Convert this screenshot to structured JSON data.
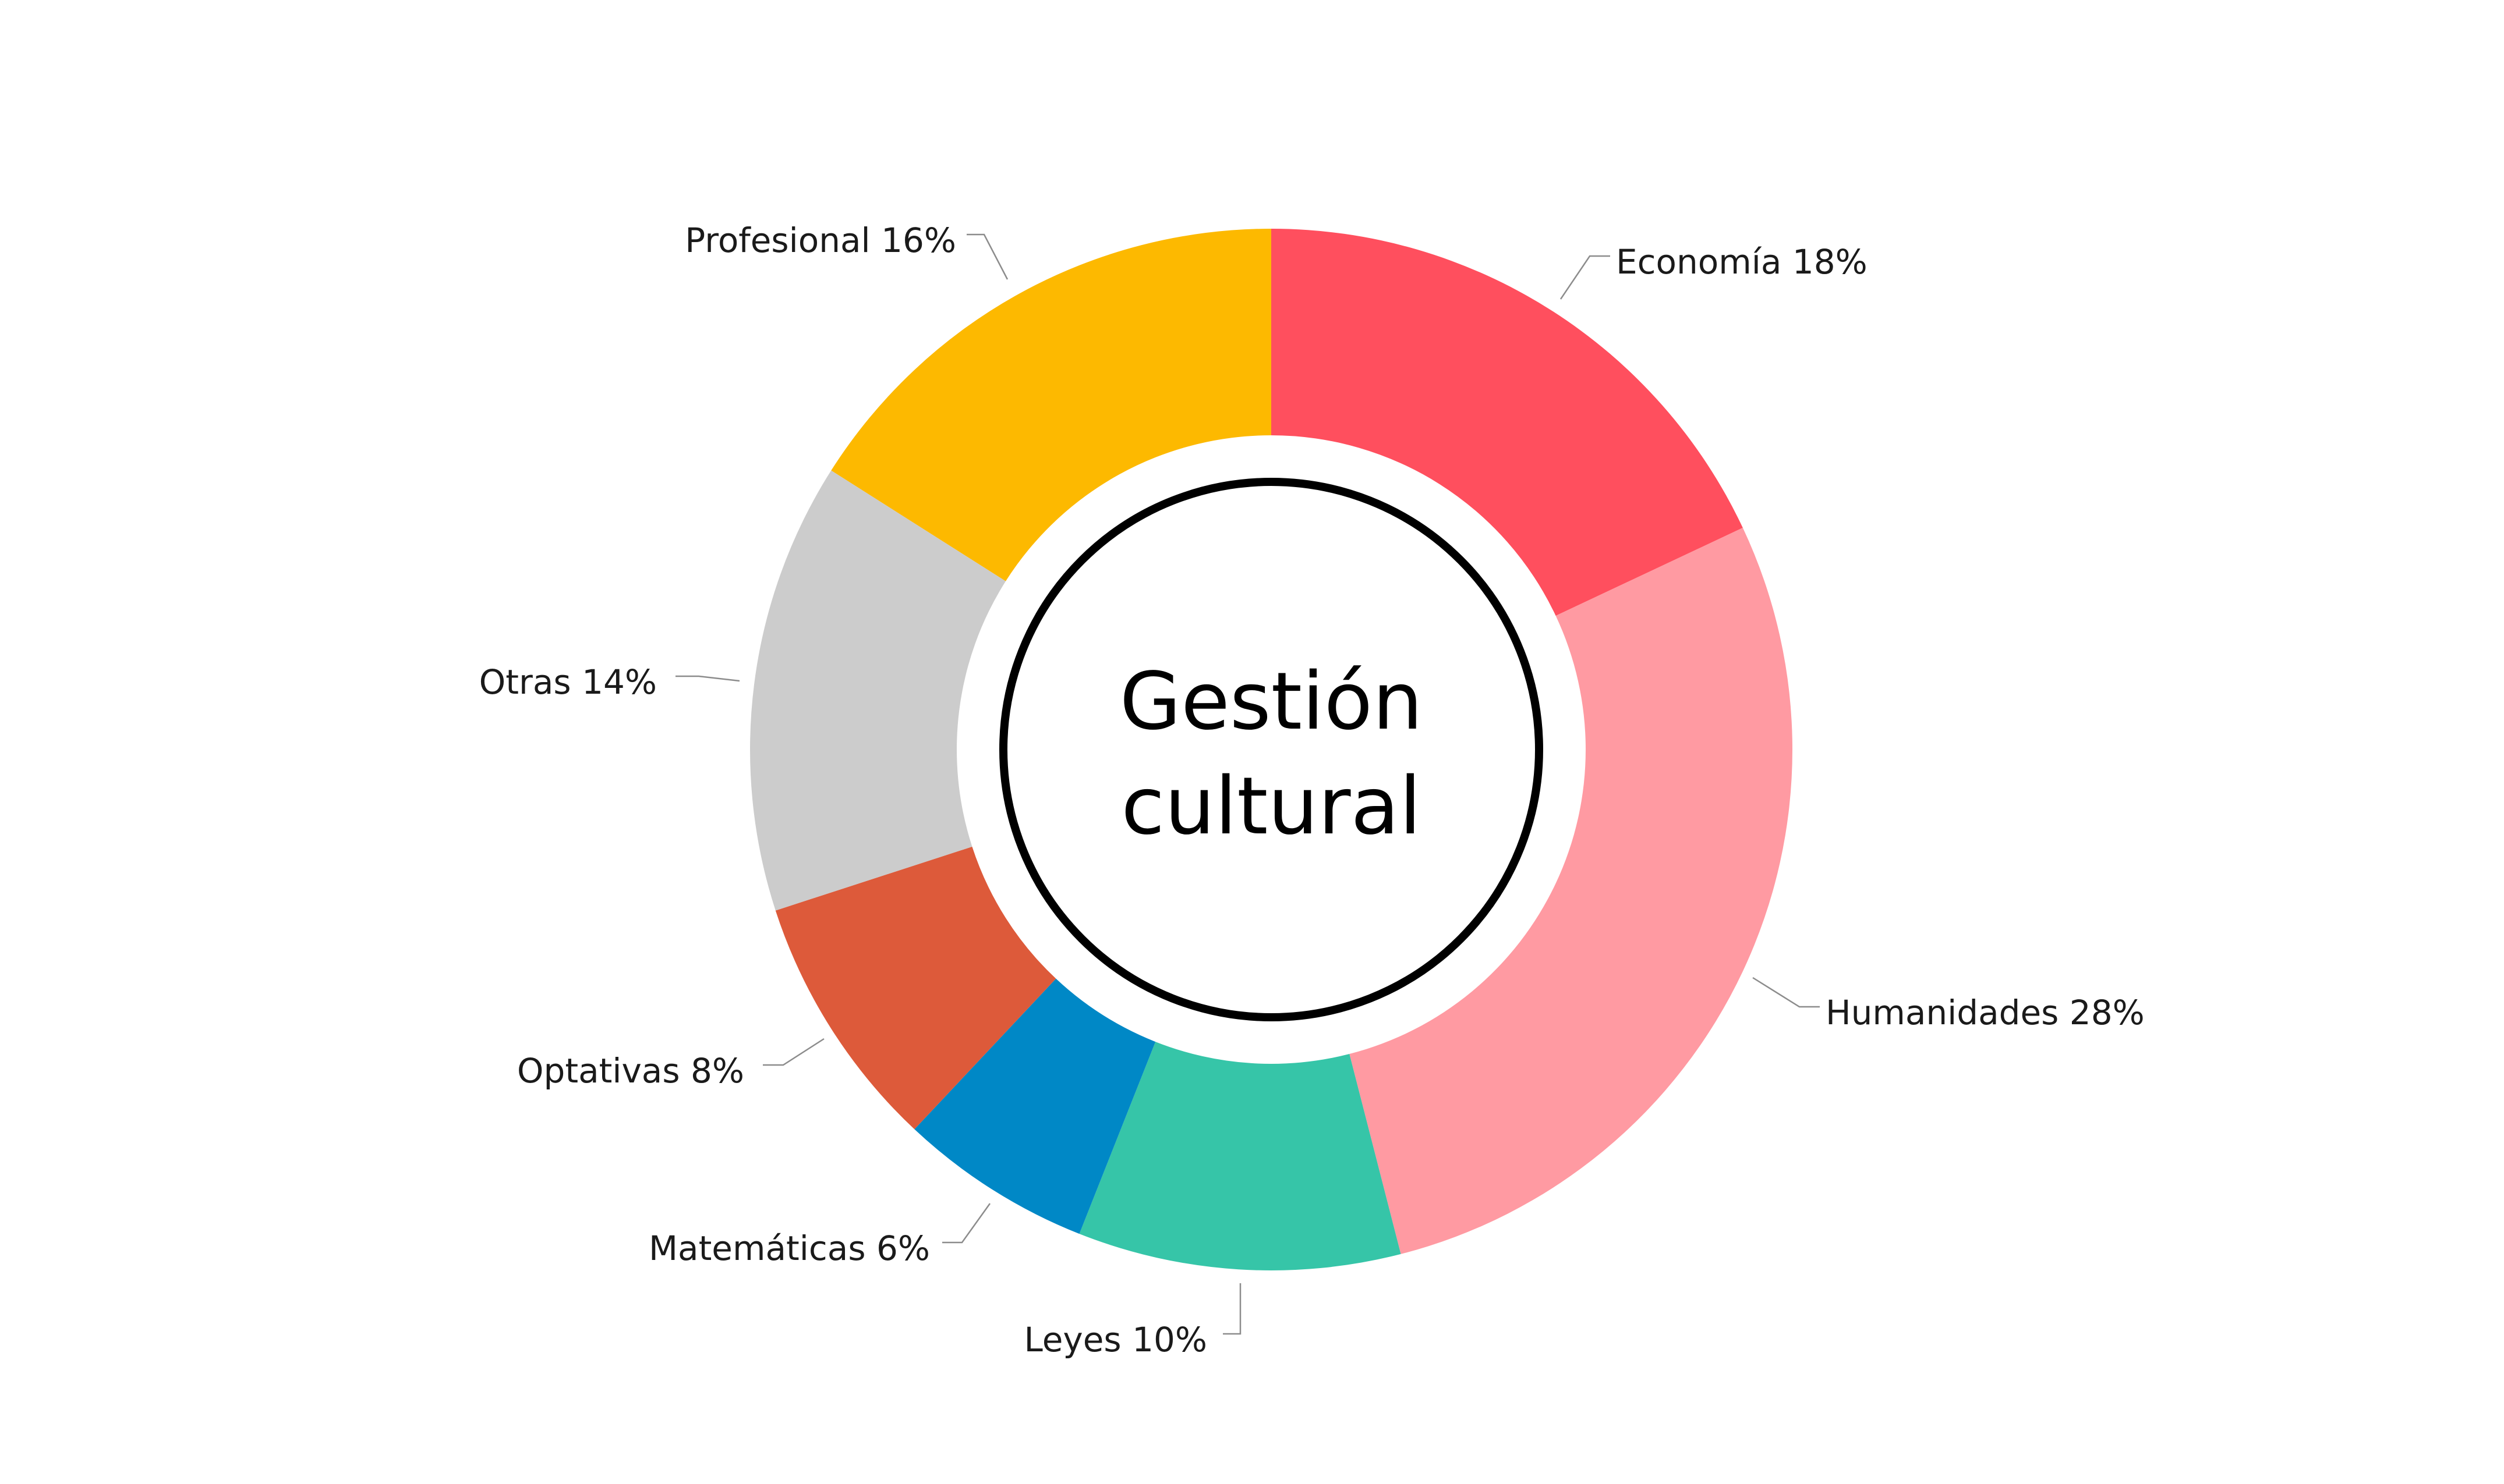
{
  "chart_data": {
    "type": "pie",
    "variant": "donut",
    "center_title_lines": [
      "Gestión",
      "cultural"
    ],
    "unit": "%",
    "start": "top",
    "direction": "clockwise",
    "slices": [
      {
        "label": "Economía",
        "value": 18,
        "color": "#FF4F5E"
      },
      {
        "label": "Humanidades",
        "value": 28,
        "color": "#FF9AA2"
      },
      {
        "label": "Leyes",
        "value": 10,
        "color": "#36C5A8"
      },
      {
        "label": "Matemáticas",
        "value": 6,
        "color": "#0088C6"
      },
      {
        "label": "Optativas",
        "value": 8,
        "color": "#DD5A3A"
      },
      {
        "label": "Otras",
        "value": 14,
        "color": "#CCCCCC"
      },
      {
        "label": "Profesional",
        "value": 16,
        "color": "#FDB900"
      }
    ],
    "legend": "none"
  }
}
